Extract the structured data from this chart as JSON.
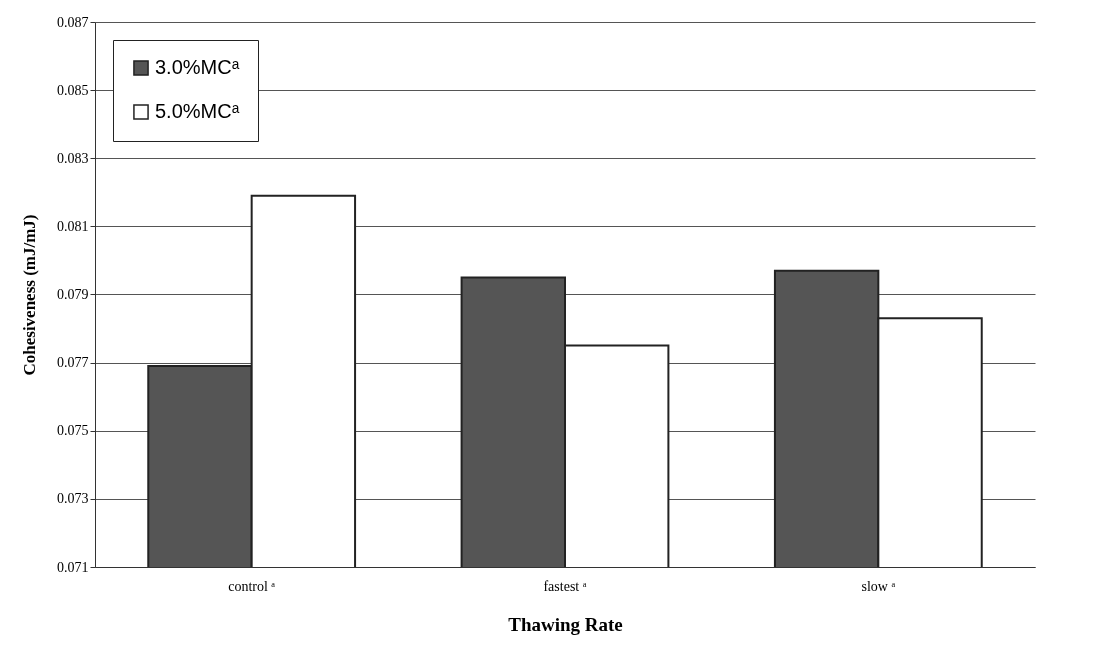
{
  "chart_data": {
    "type": "bar",
    "xlabel": "Thawing Rate",
    "ylabel": "Cohesiveness (mJ/mJ)",
    "categories": [
      "control ᵃ",
      "fastest ᵃ",
      "slow ᵃ"
    ],
    "series": [
      {
        "name": "3.0%MCᵃ",
        "color": "#555555",
        "values": [
          0.0769,
          0.0795,
          0.0797
        ]
      },
      {
        "name": "5.0%MCᵃ",
        "color": "#ffffff",
        "values": [
          0.0819,
          0.0775,
          0.0783
        ]
      }
    ],
    "ylim": [
      0.071,
      0.087
    ],
    "yticks": [
      0.071,
      0.073,
      0.075,
      0.077,
      0.079,
      0.081,
      0.083,
      0.085,
      0.087
    ],
    "grid": "y",
    "legend": "top left"
  }
}
